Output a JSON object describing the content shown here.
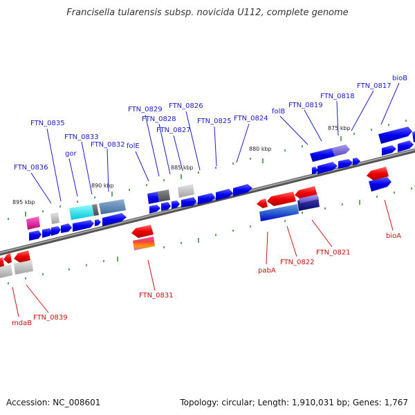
{
  "title": "Francisella tularensis subsp. novicida U112, complete genome",
  "accession": "Accession: NC_008601",
  "summary": "Topology: circular; Length: 1,910,031 bp; Genes: 1,767",
  "colors": {
    "forward_label": "#1a1acc",
    "reverse_label": "#cc1111",
    "backbone": "#888888",
    "tick": "#1f7a1f"
  },
  "scale_labels": [
    "895 kbp",
    "890 kbp",
    "885 kbp",
    "880 kbp",
    "875 kbp"
  ],
  "forward_labels": [
    "FTN_0836",
    "FTN_0835",
    "gor",
    "FTN_0833",
    "FTN_0832",
    "folE",
    "FTN_0829",
    "FTN_0828",
    "FTN_0827",
    "FTN_0826",
    "FTN_0825",
    "FTN_0824",
    "folB",
    "FTN_0819",
    "FTN_0818",
    "FTN_0817",
    "bioB"
  ],
  "reverse_labels": [
    "mdaB",
    "FTN_0839",
    "FTN_0831",
    "pabA",
    "FTN_0822",
    "FTN_0821",
    "bioA"
  ]
}
